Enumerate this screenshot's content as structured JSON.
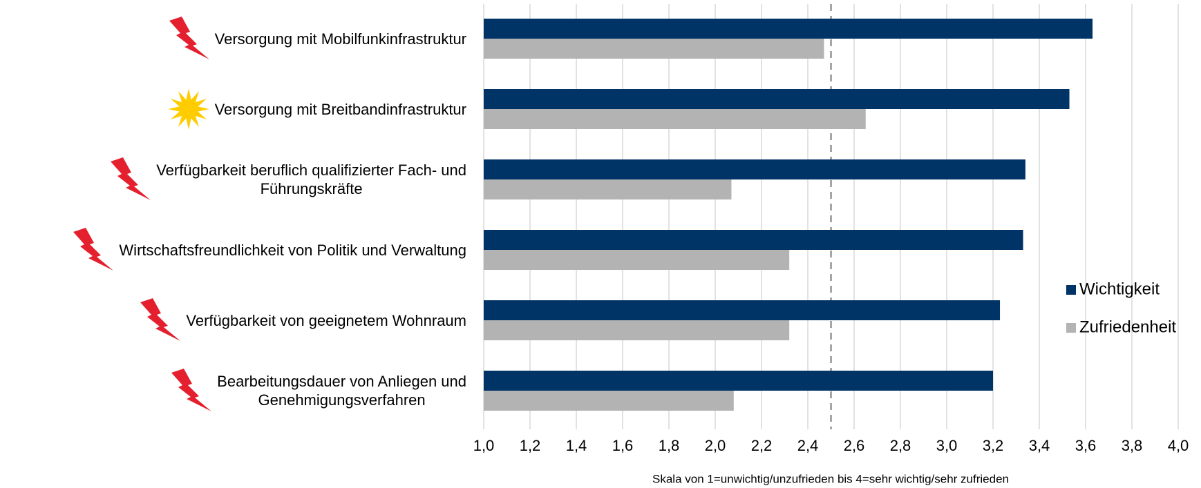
{
  "chart_data": {
    "type": "bar",
    "orientation": "horizontal",
    "categories": [
      "Versorgung mit Mobilfunkinfrastruktur",
      "Versorgung mit Breitbandinfrastruktur",
      "Verfügbarkeit beruflich qualifizierter Fach- und\nFührungskräfte",
      "Wirtschaftsfreundlichkeit von Politik und Verwaltung",
      "Verfügbarkeit von geeignetem Wohnraum",
      "Bearbeitungsdauer von Anliegen und\nGenehmigungsverfahren"
    ],
    "series": [
      {
        "name": "Wichtigkeit",
        "color": "#003366",
        "values": [
          3.63,
          3.53,
          3.34,
          3.33,
          3.23,
          3.2
        ]
      },
      {
        "name": "Zufriedenheit",
        "color": "#b3b3b3",
        "values": [
          2.47,
          2.65,
          2.07,
          2.32,
          2.32,
          2.08
        ]
      }
    ],
    "xlim": [
      1.0,
      4.0
    ],
    "xticks": [
      {
        "value": 1.0,
        "label": "1,0"
      },
      {
        "value": 1.2,
        "label": "1,2"
      },
      {
        "value": 1.4,
        "label": "1,4"
      },
      {
        "value": 1.6,
        "label": "1,6"
      },
      {
        "value": 1.8,
        "label": "1,8"
      },
      {
        "value": 2.0,
        "label": "2,0"
      },
      {
        "value": 2.2,
        "label": "2,2"
      },
      {
        "value": 2.4,
        "label": "2,4"
      },
      {
        "value": 2.6,
        "label": "2,6"
      },
      {
        "value": 2.8,
        "label": "2,8"
      },
      {
        "value": 3.0,
        "label": "3,0"
      },
      {
        "value": 3.2,
        "label": "3,2"
      },
      {
        "value": 3.4,
        "label": "3,4"
      },
      {
        "value": 3.6,
        "label": "3,6"
      },
      {
        "value": 3.8,
        "label": "3,8"
      },
      {
        "value": 4.0,
        "label": "4,0"
      }
    ],
    "reference_line": 2.5,
    "grid": true,
    "legend": "right",
    "xlabel": "Skala von 1=unwichtig/unzufrieden bis 4=sehr wichtig/sehr zufrieden"
  }
}
